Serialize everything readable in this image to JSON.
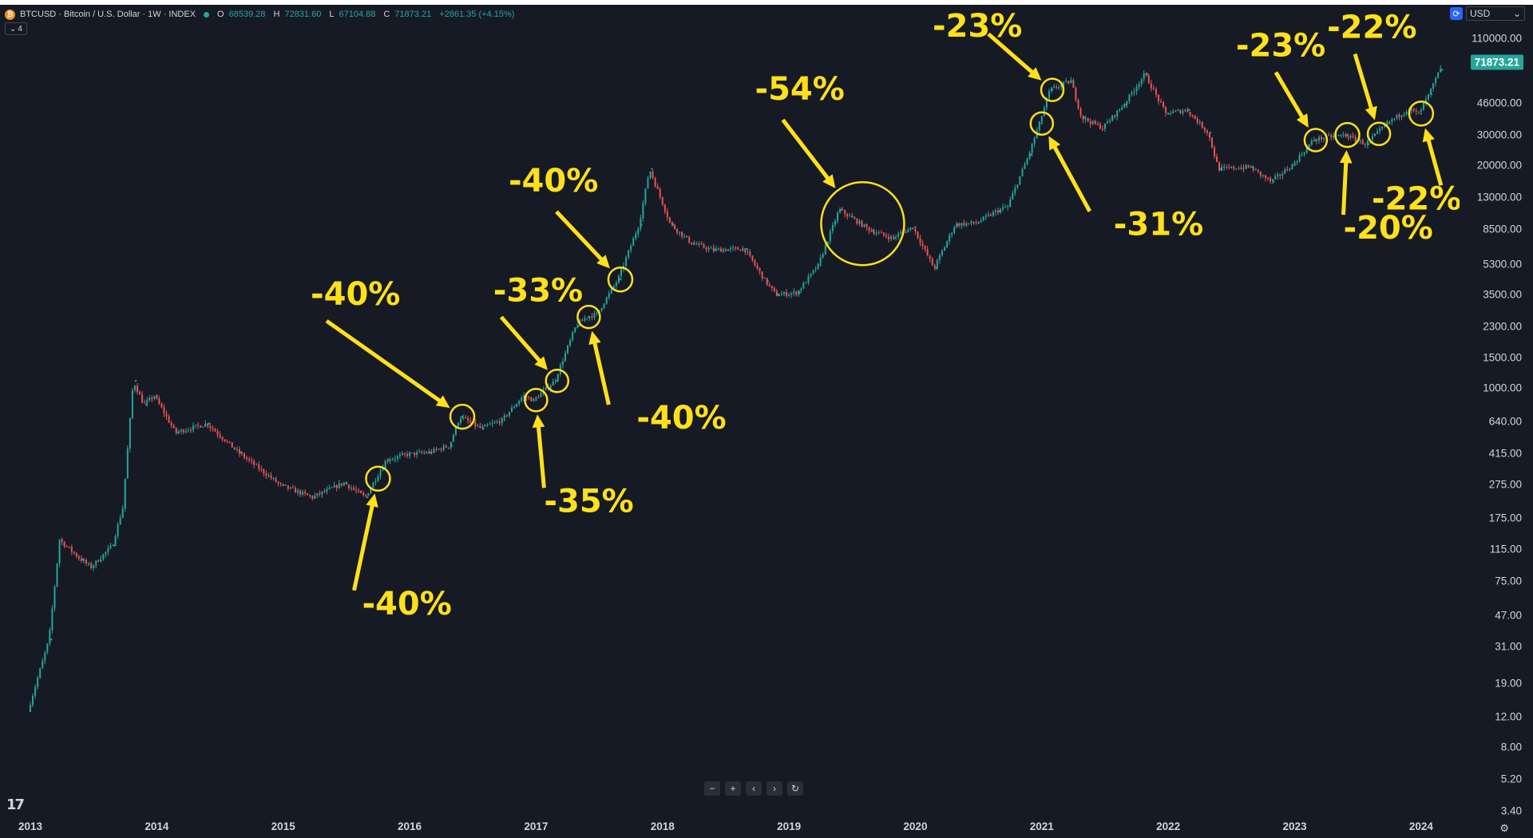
{
  "header": {
    "symbol": "BTCUSD · Bitcoin / U.S. Dollar · 1W · INDEX",
    "ohlc": [
      {
        "label": "O",
        "value": "68539.28"
      },
      {
        "label": "H",
        "value": "72831.60"
      },
      {
        "label": "L",
        "value": "67104.88"
      },
      {
        "label": "C",
        "value": "71873.21"
      }
    ],
    "change": "+2861.35 (+4.15%)",
    "indicator_count": "4"
  },
  "currency": {
    "selected": "USD"
  },
  "colors": {
    "background": "#161a25",
    "up": "#26a69a",
    "down": "#ef5350",
    "annotation": "#ffe01b"
  },
  "chart_data": {
    "type": "line",
    "title": "BTCUSD · Bitcoin / U.S. Dollar · 1W · INDEX",
    "scale": "log",
    "series": [
      {
        "name": "BTCUSD",
        "x": [
          "2013-01",
          "2013-03",
          "2013-04",
          "2013-06",
          "2013-07",
          "2013-09",
          "2013-10",
          "2013-11",
          "2013-12",
          "2014-01",
          "2014-03",
          "2014-06",
          "2014-09",
          "2015-01",
          "2015-04",
          "2015-07",
          "2015-09",
          "2015-11",
          "2016-01",
          "2016-03",
          "2016-05",
          "2016-06",
          "2016-08",
          "2016-10",
          "2016-12",
          "2017-01",
          "2017-03",
          "2017-05",
          "2017-06",
          "2017-07",
          "2017-09",
          "2017-11",
          "2017-12",
          "2018-02",
          "2018-04",
          "2018-06",
          "2018-09",
          "2018-11",
          "2018-12",
          "2019-02",
          "2019-04",
          "2019-06",
          "2019-07",
          "2019-09",
          "2019-11",
          "2020-01",
          "2020-03",
          "2020-05",
          "2020-07",
          "2020-09",
          "2020-10",
          "2020-12",
          "2021-01",
          "2021-02",
          "2021-04",
          "2021-05",
          "2021-07",
          "2021-09",
          "2021-11",
          "2022-01",
          "2022-03",
          "2022-05",
          "2022-06",
          "2022-09",
          "2022-11",
          "2023-01",
          "2023-03",
          "2023-04",
          "2023-06",
          "2023-08",
          "2023-10",
          "2023-12",
          "2024-01",
          "2024-02",
          "2024-03"
        ],
        "values": [
          13,
          34,
          130,
          100,
          90,
          120,
          200,
          1100,
          800,
          900,
          550,
          620,
          420,
          270,
          230,
          280,
          230,
          380,
          410,
          420,
          460,
          680,
          580,
          650,
          900,
          850,
          1100,
          2300,
          2600,
          2700,
          4300,
          9000,
          19000,
          9000,
          7000,
          6400,
          6500,
          4200,
          3500,
          3600,
          5200,
          11000,
          10000,
          8300,
          7500,
          8700,
          5000,
          9000,
          9200,
          10800,
          11500,
          23000,
          35000,
          55000,
          62000,
          38000,
          33000,
          45000,
          68000,
          40000,
          42000,
          31000,
          19000,
          19500,
          16000,
          20000,
          28000,
          29000,
          30000,
          26500,
          35000,
          42500,
          40000,
          52000,
          71873.21
        ]
      }
    ],
    "y_ticks": [
      "110000.00",
      "46000.00",
      "30000.00",
      "20000.00",
      "13000.00",
      "8500.00",
      "5300.00",
      "3500.00",
      "2300.00",
      "1500.00",
      "1000.00",
      "640.00",
      "415.00",
      "275.00",
      "175.00",
      "115.00",
      "75.00",
      "47.00",
      "31.00",
      "19.00",
      "12.00",
      "8.00",
      "5.20",
      "3.40"
    ],
    "x_ticks": [
      "2013",
      "2014",
      "2015",
      "2016",
      "2017",
      "2018",
      "2019",
      "2020",
      "2021",
      "2022",
      "2023",
      "2024"
    ],
    "last_price": "71873.21",
    "annotations": [
      {
        "label": "-40%",
        "date": "2015-10"
      },
      {
        "label": "-40%",
        "date": "2016-06"
      },
      {
        "label": "-35%",
        "date": "2017-01"
      },
      {
        "label": "-33%",
        "date": "2017-03"
      },
      {
        "label": "-40%",
        "date": "2017-06"
      },
      {
        "label": "-40%",
        "date": "2017-09"
      },
      {
        "label": "-54%",
        "date": "2019-08"
      },
      {
        "label": "-31%",
        "date": "2021-01"
      },
      {
        "label": "-23%",
        "date": "2021-02"
      },
      {
        "label": "-23%",
        "date": "2023-03"
      },
      {
        "label": "-20%",
        "date": "2023-06"
      },
      {
        "label": "-22%",
        "date": "2023-09"
      },
      {
        "label": "-22%",
        "date": "2024-01"
      }
    ]
  }
}
